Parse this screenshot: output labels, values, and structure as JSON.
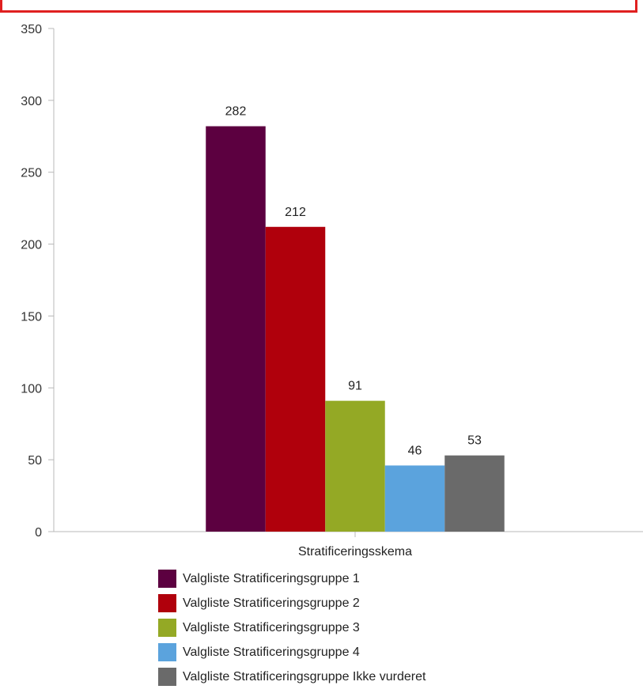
{
  "chart_data": {
    "type": "bar",
    "categories": [
      "Stratificeringsskema"
    ],
    "series": [
      {
        "name": "Valgliste Stratificeringsgruppe 1",
        "values": [
          282
        ],
        "color": "#5c0040"
      },
      {
        "name": "Valgliste Stratificeringsgruppe 2",
        "values": [
          212
        ],
        "color": "#b0000c"
      },
      {
        "name": "Valgliste Stratificeringsgruppe 3",
        "values": [
          91
        ],
        "color": "#94a925"
      },
      {
        "name": "Valgliste Stratificeringsgruppe 4",
        "values": [
          46
        ],
        "color": "#5ba3dd"
      },
      {
        "name": "Valgliste Stratificeringsgruppe Ikke vurderet",
        "values": [
          53
        ],
        "color": "#6a6a6a"
      }
    ],
    "ylim": [
      0,
      350
    ],
    "yticks": [
      0,
      50,
      100,
      150,
      200,
      250,
      300,
      350
    ],
    "legend_position": "bottom-left",
    "grid": false
  }
}
